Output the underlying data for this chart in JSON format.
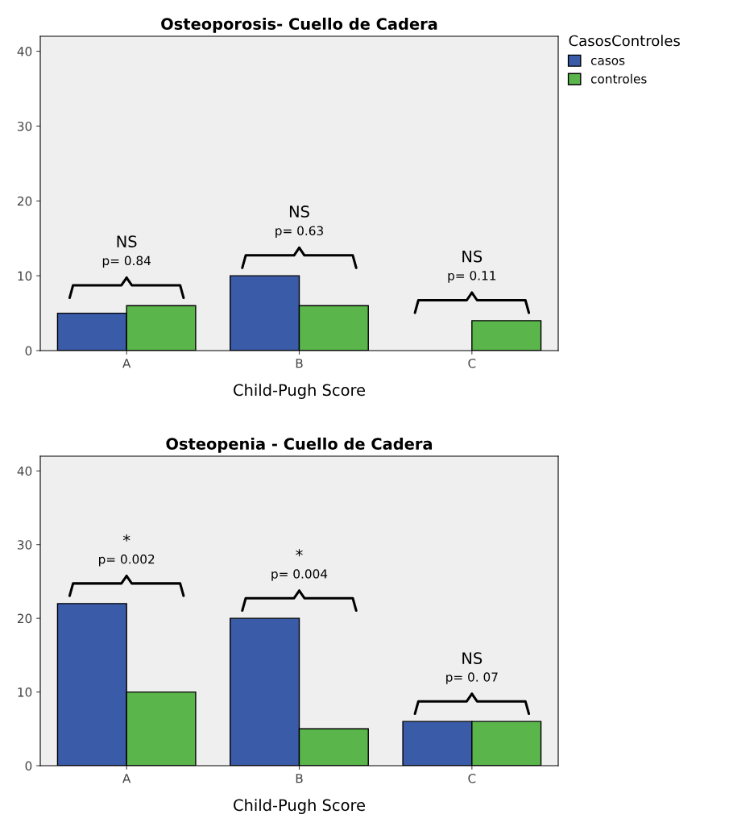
{
  "chart_data": [
    {
      "type": "bar",
      "title": "Osteoporosis- Cuello de Cadera",
      "xlabel": "Child-Pugh Score",
      "categories": [
        "A",
        "B",
        "C"
      ],
      "series": [
        {
          "name": "casos",
          "color": "#3a5ba8",
          "values": [
            5,
            10,
            null
          ]
        },
        {
          "name": "controles",
          "color": "#5ab64a",
          "values": [
            6,
            6,
            4
          ]
        }
      ],
      "ylim": [
        0,
        42
      ],
      "yticks": [
        0,
        10,
        20,
        30,
        40
      ],
      "legend": "right",
      "legend_title": "CasosControles",
      "annotations": [
        "NS",
        "p= 0.84",
        "NS",
        "p= 0.63",
        "NS",
        "p= 0.11"
      ]
    },
    {
      "type": "bar",
      "title": "Osteopenia - Cuello de Cadera",
      "xlabel": "Child-Pugh Score",
      "categories": [
        "A",
        "B",
        "C"
      ],
      "series": [
        {
          "color": "#3a5ba8",
          "values": [
            22,
            20,
            6
          ]
        },
        {
          "color": "#5ab64a",
          "values": [
            10,
            5,
            6
          ]
        }
      ],
      "ylim": [
        0,
        42
      ],
      "yticks": [
        0,
        10,
        20,
        30,
        40
      ],
      "annotations": [
        "*",
        "p= 0.002",
        "*",
        "p= 0.004",
        "NS",
        "p= 0. 07"
      ]
    }
  ]
}
